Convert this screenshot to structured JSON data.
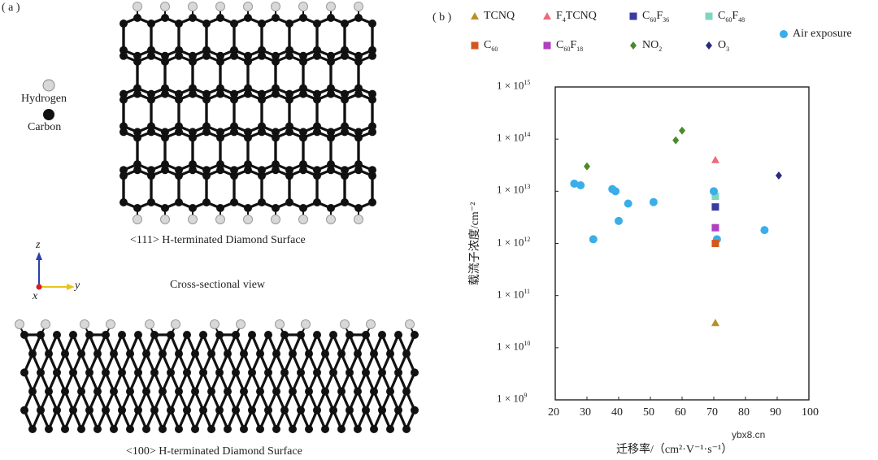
{
  "panel_a": {
    "label": "( a )",
    "legend_hydrogen": "Hydrogen",
    "legend_carbon": "Carbon",
    "surface_111": "<111> H-terminated Diamond Surface",
    "cross_section": "Cross-sectional view",
    "surface_100": "<100> H-terminated Diamond Surface",
    "axis_z": "z",
    "axis_y": "y",
    "axis_x": "x",
    "colors": {
      "carbon": "#111111",
      "hydrogen": "#d8d8d8",
      "axis_z": "#2a3fb0",
      "axis_y": "#e8c419",
      "axis_x": "#d42020"
    }
  },
  "panel_b": {
    "label": "( b )"
  },
  "chart_data": {
    "type": "scatter",
    "xlabel": "迁移率/（cm²·V⁻¹·s⁻¹）",
    "ylabel": "载流子浓度/cm⁻²",
    "xlim": [
      20,
      100
    ],
    "ylim_log10": [
      9,
      15
    ],
    "x_ticks": [
      20,
      30,
      40,
      50,
      60,
      70,
      80,
      90,
      100
    ],
    "y_ticks_exp": [
      9,
      10,
      11,
      12,
      13,
      14,
      15
    ],
    "y_tick_prefix": "1 × 10",
    "series": [
      {
        "name": "TCNQ",
        "name_main": "TCNQ",
        "marker": "triangle",
        "color": "#b8902a",
        "points": [
          [
            70.5,
            30000000000.0
          ]
        ]
      },
      {
        "name": "F4TCNQ",
        "name_main": "F",
        "name_sub": "4",
        "name_rest": "TCNQ",
        "marker": "triangle",
        "color": "#ee6a7a",
        "points": [
          [
            70.5,
            40000000000000.0
          ]
        ]
      },
      {
        "name": "C60F36",
        "name_main": "C",
        "name_sub": "60",
        "name_rest": "F",
        "name_sub2": "36",
        "marker": "square",
        "color": "#3a3aa0",
        "points": [
          [
            70.5,
            5000000000000.0
          ]
        ]
      },
      {
        "name": "C60F48",
        "name_main": "C",
        "name_sub": "60",
        "name_rest": "F",
        "name_sub2": "48",
        "marker": "square",
        "color": "#7fd6c0",
        "points": [
          [
            70.5,
            8000000000000.0
          ]
        ]
      },
      {
        "name": "Air exposure",
        "name_main": "Air exposure",
        "marker": "circle",
        "color": "#3aaee8",
        "points": [
          [
            26,
            14000000000000.0
          ],
          [
            28,
            13000000000000.0
          ],
          [
            32,
            1200000000000.0
          ],
          [
            38,
            11000000000000.0
          ],
          [
            39,
            10000000000000.0
          ],
          [
            40,
            2700000000000.0
          ],
          [
            43,
            5800000000000.0
          ],
          [
            51,
            6200000000000.0
          ],
          [
            70,
            10000000000000.0
          ],
          [
            71,
            1200000000000.0
          ],
          [
            86,
            1800000000000.0
          ]
        ]
      },
      {
        "name": "C60",
        "name_main": "C",
        "name_sub": "60",
        "marker": "square",
        "color": "#d4581e",
        "points": [
          [
            70.5,
            1000000000000.0
          ]
        ]
      },
      {
        "name": "C60F18",
        "name_main": "C",
        "name_sub": "60",
        "name_rest": "F",
        "name_sub2": "18",
        "marker": "square",
        "color": "#b040c0",
        "points": [
          [
            70.5,
            2000000000000.0
          ]
        ]
      },
      {
        "name": "NO2",
        "name_main": "NO",
        "name_sub": "2",
        "marker": "diamond",
        "color": "#4a8a2a",
        "points": [
          [
            30,
            30000000000000.0
          ],
          [
            58,
            95000000000000.0
          ],
          [
            60,
            145000000000000.0
          ]
        ]
      },
      {
        "name": "O3",
        "name_main": "O",
        "name_sub": "3",
        "marker": "diamond",
        "color": "#2a2a80",
        "points": [
          [
            90.5,
            20000000000000.0
          ]
        ]
      }
    ]
  },
  "watermark": "ybx8.cn"
}
